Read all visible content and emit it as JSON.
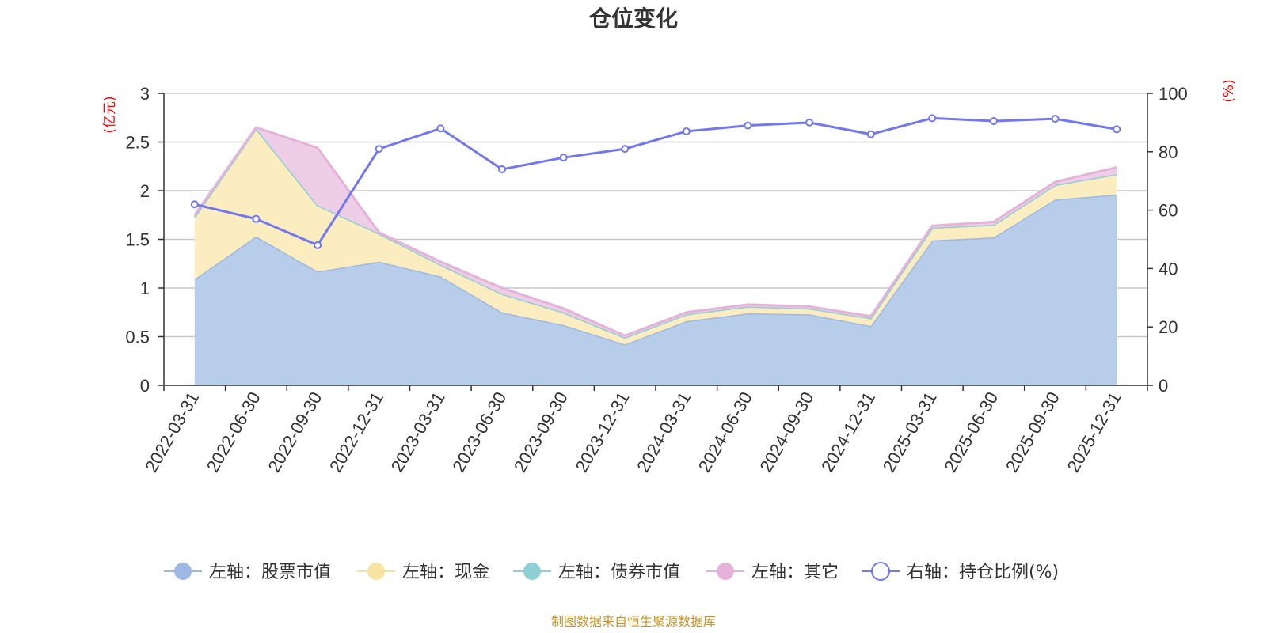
{
  "chart_data": {
    "type": "area",
    "title": "仓位变化",
    "categories": [
      "2022-03-31",
      "2022-06-30",
      "2022-09-30",
      "2022-12-31",
      "2023-03-31",
      "2023-06-30",
      "2023-09-30",
      "2023-12-31",
      "2024-03-31",
      "2024-06-30",
      "2024-09-30",
      "2024-12-31",
      "2025-03-31",
      "2025-06-30",
      "2025-09-30",
      "2025-12-31"
    ],
    "left_axis": {
      "unit": "(亿元)",
      "ylim": [
        0,
        3
      ],
      "ticks": [
        "0",
        "0.5",
        "1",
        "1.5",
        "2",
        "2.5",
        "3"
      ]
    },
    "right_axis": {
      "unit": "(%)",
      "ylim": [
        0,
        100
      ],
      "ticks": [
        "0",
        "20",
        "40",
        "60",
        "80",
        "100"
      ]
    },
    "series": [
      {
        "name": "左轴：股票市值",
        "axis": "left",
        "stack": true,
        "color": "#9db8e2",
        "fill": "#b8cdea",
        "values": [
          1.09,
          1.53,
          1.17,
          1.27,
          1.12,
          0.75,
          0.62,
          0.42,
          0.66,
          0.74,
          0.73,
          0.61,
          1.49,
          1.52,
          1.91,
          1.96
        ]
      },
      {
        "name": "左轴：现金",
        "axis": "left",
        "stack": true,
        "color": "#f7e4a3",
        "fill": "#fbedbf",
        "values": [
          0.64,
          1.11,
          0.68,
          0.29,
          0.12,
          0.19,
          0.13,
          0.07,
          0.07,
          0.07,
          0.06,
          0.08,
          0.13,
          0.13,
          0.15,
          0.21
        ]
      },
      {
        "name": "左轴：债券市值",
        "axis": "left",
        "stack": true,
        "color": "#8fcfd6",
        "fill": "#b5e1e5",
        "values": [
          0,
          0,
          0,
          0,
          0,
          0,
          0,
          0,
          0,
          0,
          0,
          0,
          0,
          0,
          0,
          0
        ]
      },
      {
        "name": "左轴：其它",
        "axis": "left",
        "stack": true,
        "color": "#e5b3d9",
        "fill": "#eecde6",
        "values": [
          0.02,
          0.01,
          0.59,
          0.01,
          0.03,
          0.06,
          0.04,
          0.02,
          0.02,
          0.02,
          0.02,
          0.02,
          0.02,
          0.03,
          0.03,
          0.07
        ]
      },
      {
        "name": "右轴：持仓比例(%)",
        "axis": "right",
        "stack": false,
        "color": "#7277ee",
        "values": [
          62,
          57,
          48,
          81,
          88,
          74,
          78,
          81,
          87,
          89,
          90,
          86,
          91.5,
          90.5,
          91.3,
          87.7
        ]
      }
    ],
    "source": "制图数据来自恒生聚源数据库"
  }
}
